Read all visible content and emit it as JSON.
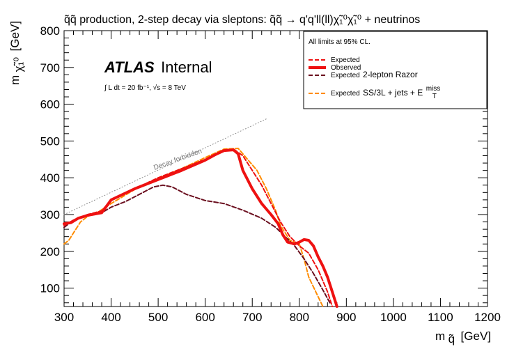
{
  "chart_data": {
    "type": "line",
    "title": "q̃q̃ production, 2-step decay via sleptons: q̃q̃ → q'q'll(ll)χ̃₁⁰χ̃₁⁰ + neutrinos",
    "xlabel": "m",
    "xlabel_sub": "q̃",
    "xlabel_unit": "[GeV]",
    "ylabel": "m",
    "ylabel_sub": "χ̃₁⁰",
    "ylabel_unit": "[GeV]",
    "xlim": [
      300,
      1200
    ],
    "ylim": [
      50,
      800
    ],
    "xticks": [
      300,
      400,
      500,
      600,
      700,
      800,
      900,
      1000,
      1100,
      1200
    ],
    "yticks": [
      100,
      200,
      300,
      400,
      500,
      600,
      700,
      800
    ],
    "grid": false,
    "legend_position": "top-right",
    "legend_header": "All limits at 95% CL.",
    "atlas_label_bold": "ATLAS",
    "atlas_label_plain": "Internal",
    "lumi_text": "∫ L dt = 20 fb⁻¹, √s = 8 TeV",
    "forbidden_label": "Decay forbidden",
    "series": [
      {
        "name": "Expected",
        "color": "#ee1111",
        "style": "dashed",
        "width": 2,
        "x": [
          300,
          320,
          350,
          380,
          400,
          450,
          500,
          550,
          600,
          640,
          660,
          680,
          700,
          720,
          740,
          760,
          780,
          800,
          820,
          840,
          860,
          870
        ],
        "y": [
          270,
          285,
          300,
          310,
          340,
          370,
          400,
          425,
          450,
          472,
          478,
          460,
          420,
          380,
          330,
          280,
          240,
          215,
          195,
          150,
          90,
          50
        ]
      },
      {
        "name": "Observed",
        "color": "#ee1111",
        "style": "solid",
        "width": 4,
        "x": [
          300,
          315,
          330,
          350,
          380,
          400,
          450,
          500,
          550,
          600,
          620,
          640,
          660,
          670,
          680,
          700,
          720,
          740,
          755,
          765,
          775,
          790,
          800,
          810,
          820,
          830,
          840,
          850,
          860,
          870,
          880
        ],
        "y": [
          275,
          278,
          290,
          298,
          305,
          340,
          370,
          395,
          420,
          448,
          462,
          474,
          476,
          465,
          420,
          370,
          330,
          300,
          275,
          245,
          225,
          220,
          225,
          232,
          230,
          215,
          185,
          160,
          130,
          90,
          50
        ]
      },
      {
        "name": "2-lepton Razor",
        "legend_prefix": "Expected",
        "color": "#6b0f1f",
        "style": "dashed",
        "width": 2,
        "x": [
          300,
          320,
          350,
          380,
          400,
          430,
          460,
          490,
          510,
          530,
          560,
          600,
          640,
          680,
          720,
          750,
          770,
          790,
          810,
          830,
          850,
          865
        ],
        "y": [
          265,
          285,
          300,
          305,
          320,
          335,
          355,
          375,
          380,
          375,
          355,
          338,
          330,
          312,
          290,
          265,
          240,
          215,
          180,
          140,
          95,
          60
        ]
      },
      {
        "name": "SS/3L + jets + E",
        "name_sup": "miss",
        "name_sub": "T",
        "legend_prefix": "Expected",
        "color": "#ff8c00",
        "style": "dashed",
        "width": 2,
        "x": [
          300,
          310,
          320,
          335,
          350,
          370,
          400,
          450,
          500,
          550,
          600,
          640,
          670,
          690,
          710,
          730,
          750,
          760,
          780,
          800,
          810,
          820,
          835,
          850
        ],
        "y": [
          220,
          230,
          250,
          280,
          295,
          305,
          330,
          368,
          398,
          425,
          455,
          478,
          480,
          450,
          420,
          370,
          310,
          270,
          230,
          220,
          180,
          130,
          90,
          50
        ]
      },
      {
        "name": "Decay forbidden",
        "color": "#888888",
        "style": "dotted",
        "width": 1,
        "x": [
          300,
          730
        ],
        "y": [
          300,
          560
        ]
      }
    ]
  }
}
